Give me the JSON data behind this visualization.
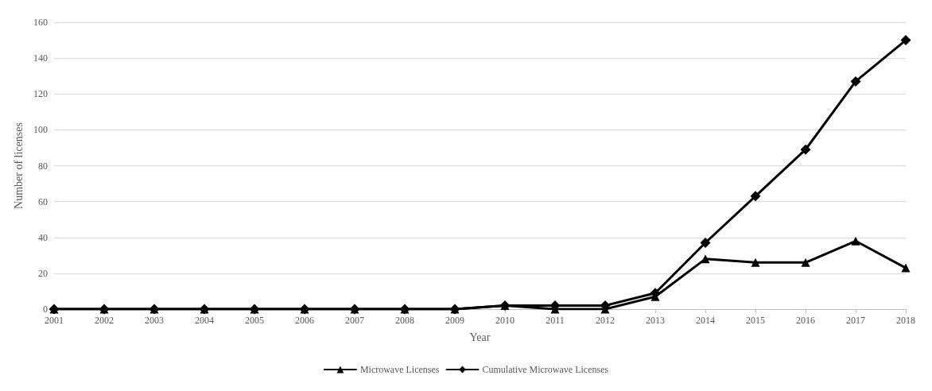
{
  "chart_data": {
    "type": "line",
    "xlabel": "Year",
    "ylabel": "Number of licenses",
    "categories": [
      "2001",
      "2002",
      "2003",
      "2004",
      "2005",
      "2006",
      "2007",
      "2008",
      "2009",
      "2010",
      "2011",
      "2012",
      "2013",
      "2014",
      "2015",
      "2016",
      "2017",
      "2018"
    ],
    "series": [
      {
        "name": "Microwave Licenses",
        "color": "#000000",
        "marker": "triangle",
        "values": [
          0,
          0,
          0,
          0,
          0,
          0,
          0,
          0,
          0,
          2,
          0,
          0,
          7,
          28,
          26,
          26,
          38,
          23
        ]
      },
      {
        "name": "Cumulative Microwave Licenses",
        "color": "#000000",
        "marker": "diamond",
        "values": [
          0,
          0,
          0,
          0,
          0,
          0,
          0,
          0,
          0,
          2,
          2,
          2,
          9,
          37,
          63,
          89,
          127,
          150
        ]
      }
    ],
    "ylim": [
      0,
      160
    ],
    "yticks": [
      0,
      20,
      40,
      60,
      80,
      100,
      120,
      140,
      160
    ],
    "grid": "y",
    "legend": "bottom",
    "line_style": "solid"
  }
}
